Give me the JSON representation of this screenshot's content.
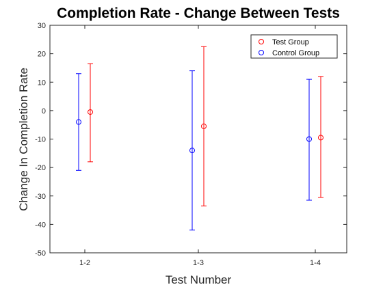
{
  "chart_data": {
    "type": "scatter",
    "title": "Completion Rate - Change Between Tests",
    "xlabel": "Test Number",
    "ylabel": "Change In Completion Rate",
    "categories": [
      "1-2",
      "1-3",
      "1-4"
    ],
    "ylim": [
      -50,
      30
    ],
    "yticks": [
      -50,
      -40,
      -30,
      -20,
      -10,
      0,
      10,
      20,
      30
    ],
    "grid": false,
    "legend_position": "top-right",
    "series": [
      {
        "name": "Test Group",
        "color": "#ff0000",
        "marker": "circle-with-errorbar",
        "values": [
          -0.5,
          -5.5,
          -9.5
        ],
        "upper": [
          16.5,
          22.5,
          12.0
        ],
        "lower": [
          -18.0,
          -33.5,
          -30.5
        ]
      },
      {
        "name": "Control Group",
        "color": "#0000ff",
        "marker": "circle-with-errorbar",
        "values": [
          -4.0,
          -14.0,
          -10.0
        ],
        "upper": [
          13.0,
          14.0,
          11.0
        ],
        "lower": [
          -21.0,
          -42.0,
          -31.5
        ]
      }
    ]
  }
}
